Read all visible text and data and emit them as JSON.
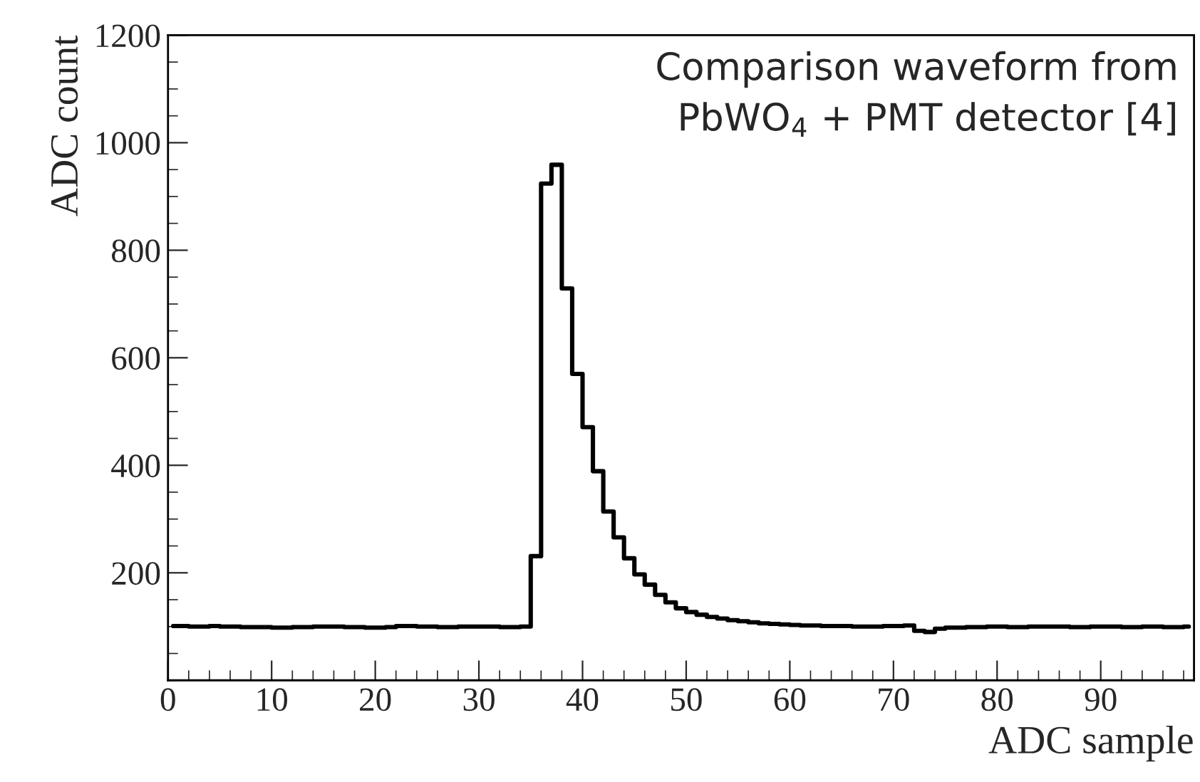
{
  "chart_data": {
    "type": "step",
    "xlabel": "ADC sample",
    "ylabel": "ADC count",
    "annotations": [
      "Comparison waveform from\nPbWO$_{4}$ + PMT detector [4]"
    ],
    "x": [
      0.5,
      1.5,
      2.5,
      3.5,
      4.5,
      5.5,
      6.5,
      7.5,
      8.5,
      9.5,
      10.5,
      11.5,
      12.5,
      13.5,
      14.5,
      15.5,
      16.5,
      17.5,
      18.5,
      19.5,
      20.5,
      21.5,
      22.5,
      23.5,
      24.5,
      25.5,
      26.5,
      27.5,
      28.5,
      29.5,
      30.5,
      31.5,
      32.5,
      33.5,
      34.5,
      35.5,
      36.5,
      37.5,
      38.5,
      39.5,
      40.5,
      41.5,
      42.5,
      43.5,
      44.5,
      45.5,
      46.5,
      47.5,
      48.5,
      49.5,
      50.5,
      51.5,
      52.5,
      53.5,
      54.5,
      55.5,
      56.5,
      57.5,
      58.5,
      59.5,
      60.5,
      61.5,
      62.5,
      63.5,
      64.5,
      65.5,
      66.5,
      67.5,
      68.5,
      69.5,
      70.5,
      71.5,
      72.5,
      73.5,
      74.5,
      75.5,
      76.5,
      77.5,
      78.5,
      79.5,
      80.5,
      81.5,
      82.5,
      83.5,
      84.5,
      85.5,
      86.5,
      87.5,
      88.5,
      89.5,
      90.5,
      91.5,
      92.5,
      93.5,
      94.5,
      95.5,
      96.5,
      97.5,
      98.5
    ],
    "values": [
      101,
      101,
      100,
      100,
      101,
      100,
      100,
      99,
      99,
      99,
      98,
      98,
      99,
      99,
      100,
      100,
      100,
      99,
      99,
      98,
      98,
      99,
      101,
      101,
      100,
      100,
      99,
      99,
      100,
      100,
      100,
      100,
      99,
      99,
      100,
      231,
      924,
      959,
      729,
      570,
      471,
      389,
      314,
      266,
      227,
      197,
      178,
      159,
      145,
      134,
      127,
      122,
      118,
      115,
      112,
      110,
      108,
      106,
      105,
      104,
      103,
      102,
      102,
      101,
      101,
      101,
      100,
      100,
      100,
      101,
      101,
      102,
      92,
      90,
      96,
      98,
      98,
      99,
      99,
      100,
      100,
      99,
      99,
      100,
      100,
      100,
      100,
      99,
      99,
      100,
      100,
      100,
      99,
      99,
      100,
      100,
      99,
      99,
      100
    ],
    "color": "#000000",
    "xlim": [
      0,
      99
    ],
    "ylim": [
      0,
      1200
    ],
    "xticks": [
      0,
      10,
      20,
      30,
      40,
      50,
      60,
      70,
      80,
      90
    ],
    "yticks": [
      200,
      400,
      600,
      800,
      1000,
      1200
    ],
    "grid": false
  }
}
